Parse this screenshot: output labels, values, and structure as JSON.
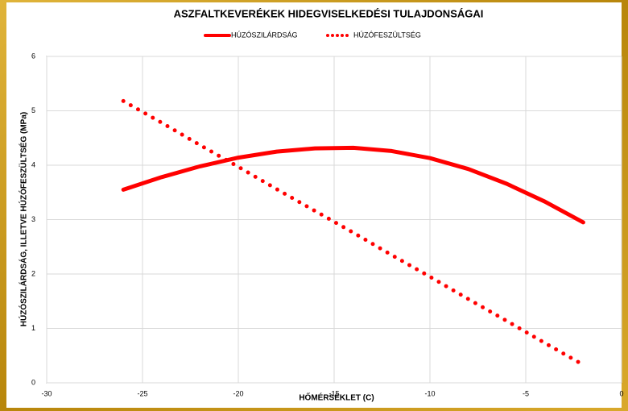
{
  "chart_data": {
    "type": "line",
    "title": "ASZFALTKEVERÉKEK HIDEGVISELKEDÉSI TULAJDONSÁGAI",
    "x_label": "HŐMÉRSÉKLET (C)",
    "y_label": "HÚZÓSZILÁRDSÁG, ILLETVE HÚZÓFESZÜLTSÉG (MPa)",
    "x": [
      -26,
      -24,
      -22,
      -20,
      -18,
      -16,
      -14,
      -12,
      -10,
      -8,
      -6,
      -4,
      -2
    ],
    "series": [
      {
        "name": "HÚZÓSZILÁRDSÁG",
        "color": "#ff0000",
        "style": "solid",
        "values": [
          3.55,
          3.78,
          3.98,
          4.14,
          4.25,
          4.31,
          4.32,
          4.26,
          4.13,
          3.93,
          3.66,
          3.33,
          2.95
        ]
      },
      {
        "name": "HÚZÓFESZÜLTSÉG",
        "color": "#ff0000",
        "style": "dotted",
        "values": [
          5.18,
          4.78,
          4.37,
          3.97,
          3.56,
          3.16,
          2.76,
          2.35,
          1.95,
          1.54,
          1.14,
          0.73,
          0.33
        ]
      }
    ],
    "xlim": [
      -30,
      0
    ],
    "xticks": [
      -30,
      -25,
      -20,
      -15,
      -10,
      -5,
      0
    ],
    "ylim": [
      0,
      6
    ],
    "yticks": [
      0,
      1,
      2,
      3,
      4,
      5,
      6
    ],
    "grid": true,
    "legend": "top"
  }
}
